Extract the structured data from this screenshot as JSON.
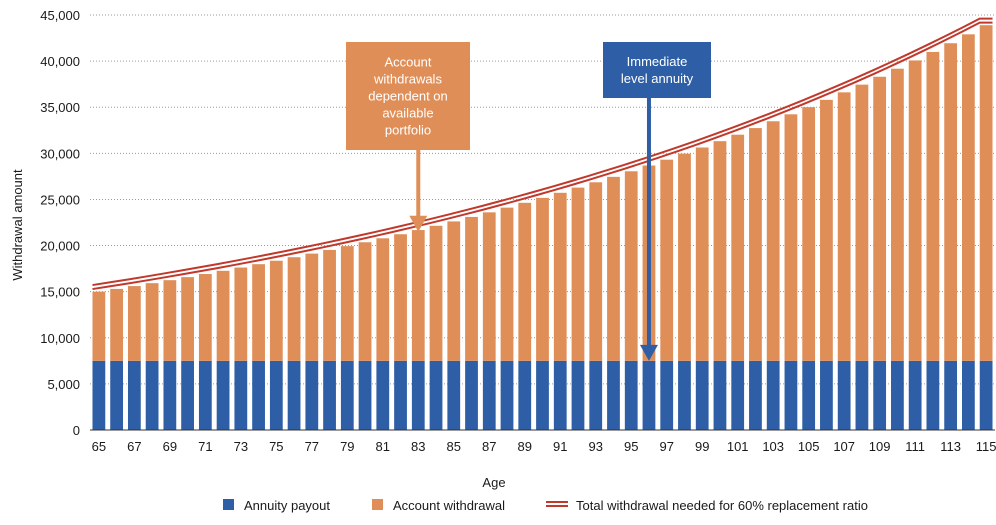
{
  "chart_data": {
    "type": "bar",
    "stacked": true,
    "xlabel": "Age",
    "ylabel": "Withdrawal amount",
    "ylim": [
      0,
      45000
    ],
    "yticks": [
      "0",
      "5,000",
      "10,000",
      "15,000",
      "20,000",
      "25,000",
      "30,000",
      "35,000",
      "40,000",
      "45,000"
    ],
    "xtick_labels": [
      "65",
      "67",
      "69",
      "71",
      "73",
      "75",
      "77",
      "79",
      "81",
      "83",
      "85",
      "87",
      "89",
      "91",
      "93",
      "95",
      "97",
      "99",
      "101",
      "103",
      "105",
      "107",
      "109",
      "111",
      "113",
      "115"
    ],
    "grid": "horizontal-dotted",
    "legend_position": "bottom",
    "categories": [
      65,
      66,
      67,
      68,
      69,
      70,
      71,
      72,
      73,
      74,
      75,
      76,
      77,
      78,
      79,
      80,
      81,
      82,
      83,
      84,
      85,
      86,
      87,
      88,
      89,
      90,
      91,
      92,
      93,
      94,
      95,
      96,
      97,
      98,
      99,
      100,
      101,
      102,
      103,
      104,
      105,
      106,
      107,
      108,
      109,
      110,
      111,
      112,
      113,
      114,
      115
    ],
    "series": [
      {
        "name": "Annuity payout",
        "color": "#2e5fa6",
        "values": [
          7500,
          7500,
          7500,
          7500,
          7500,
          7500,
          7500,
          7500,
          7500,
          7500,
          7500,
          7500,
          7500,
          7500,
          7500,
          7500,
          7500,
          7500,
          7500,
          7500,
          7500,
          7500,
          7500,
          7500,
          7500,
          7500,
          7500,
          7500,
          7500,
          7500,
          7500,
          7500,
          7500,
          7500,
          7500,
          7500,
          7500,
          7500,
          7500,
          7500,
          7500,
          7500,
          7500,
          7500,
          7500,
          7500,
          7500,
          7500,
          7500,
          7500,
          7500
        ]
      },
      {
        "name": "Account withdrawal",
        "color": "#e08e57",
        "values": [
          7500,
          7800,
          8107,
          8422,
          8745,
          9075,
          9414,
          9761,
          10116,
          10481,
          10853,
          11235,
          11627,
          12027,
          12438,
          12858,
          13288,
          13729,
          14181,
          14644,
          15118,
          15604,
          16102,
          16612,
          17135,
          17671,
          18220,
          18783,
          19360,
          19951,
          20556,
          21177,
          21813,
          22465,
          23133,
          23818,
          24520,
          25239,
          25977,
          26732,
          27507,
          28300,
          29114,
          29948,
          30802,
          31678,
          32575,
          33495,
          34438,
          35404,
          36394
        ]
      }
    ],
    "line_series": {
      "name": "Total withdrawal needed for 60% replacement ratio",
      "color": "#c0392b",
      "values": [
        15500,
        15800,
        16107,
        16422,
        16745,
        17075,
        17414,
        17761,
        18116,
        18481,
        18853,
        19235,
        19627,
        20027,
        20438,
        20858,
        21288,
        21729,
        22181,
        22644,
        23118,
        23604,
        24102,
        24612,
        25135,
        25671,
        26220,
        26783,
        27360,
        27951,
        28556,
        29177,
        29813,
        30465,
        31133,
        31818,
        32520,
        33239,
        33977,
        34732,
        35507,
        36300,
        37114,
        37948,
        38802,
        39678,
        40575,
        41495,
        42438,
        43404,
        44394
      ]
    },
    "annotations": [
      {
        "lines": [
          "Account",
          "withdrawals",
          "dependent on",
          "available",
          "portfolio"
        ],
        "color": "#e08e57",
        "points_to_age": 83
      },
      {
        "lines": [
          "Immediate",
          "level annuity"
        ],
        "color": "#2e5fa6",
        "points_to_age": 96
      }
    ]
  }
}
